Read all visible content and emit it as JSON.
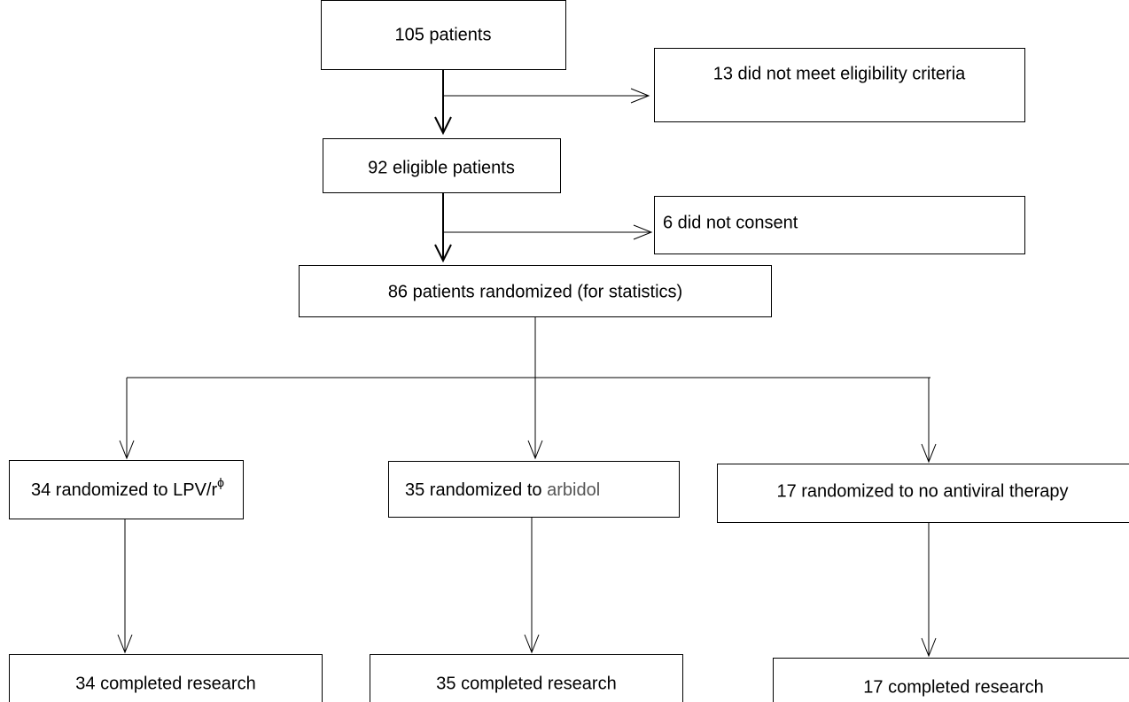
{
  "nodes": [
    {
      "label": "105 patients"
    },
    {
      "label": "13 did not meet eligibility criteria"
    },
    {
      "label": "92 eligible patients"
    },
    {
      "label": "6 did not consent"
    },
    {
      "label": "86 patients randomized (for statistics)"
    },
    {
      "label": "34 randomized to ",
      "drug": "LPV/r",
      "sup": "ϕ"
    },
    {
      "label": "35 randomized to ",
      "drug": "arbidol"
    },
    {
      "label": "17 randomized to no antiviral therapy"
    },
    {
      "label": "34 completed research"
    },
    {
      "label": "35 completed research"
    },
    {
      "label": "17 completed research"
    }
  ]
}
